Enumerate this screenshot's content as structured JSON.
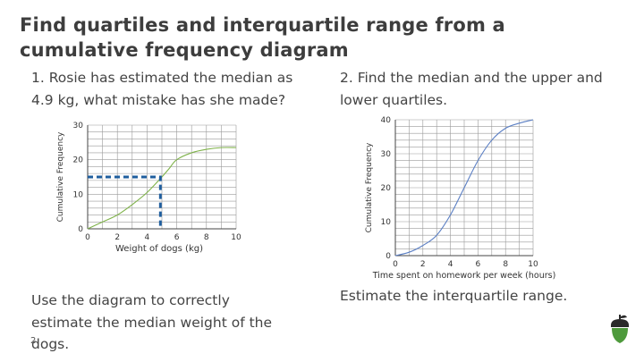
{
  "title": "Find quartiles and interquartile range from a cumulative frequency diagram",
  "question1": "1. Rosie has estimated the median as 4.9 kg, what mistake has she made?",
  "question2": "2. Find the median and the upper and lower quartiles.",
  "question3": "Use the diagram to correctly estimate the median weight of the dogs.",
  "question4": "Estimate the interquartile range.",
  "page_number": "2",
  "logo_icon": "acorn-icon",
  "colors": {
    "curve1": "#7fb24a",
    "curve2": "#5b7fc4",
    "dashed": "#1f5e9e",
    "grid": "#888888"
  },
  "chart_data": [
    {
      "type": "line",
      "xlabel": "Weight of dogs (kg)",
      "ylabel": "Cumulative Frequency",
      "xlim": [
        0,
        10
      ],
      "ylim": [
        0,
        30
      ],
      "xticks": [
        0,
        2,
        4,
        6,
        8,
        10
      ],
      "yticks": [
        0,
        10,
        20,
        30
      ],
      "grid": true,
      "series": [
        {
          "x": [
            0,
            1,
            2,
            3,
            4,
            5,
            5.5,
            6,
            7,
            8,
            9,
            10
          ],
          "y": [
            0,
            2,
            4,
            7,
            10.5,
            15,
            17.5,
            20,
            22,
            23,
            23.5,
            23.5
          ]
        }
      ],
      "annotation": {
        "type": "dashed-guide",
        "y": 15,
        "x": 4.9
      }
    },
    {
      "type": "line",
      "xlabel": "Time spent on homework per week (hours)",
      "ylabel": "Cumulative Frequency",
      "xlim": [
        0,
        10
      ],
      "ylim": [
        0,
        40
      ],
      "xticks": [
        0,
        2,
        4,
        6,
        8,
        10
      ],
      "yticks": [
        0,
        10,
        20,
        30,
        40
      ],
      "grid": true,
      "series": [
        {
          "x": [
            0,
            1,
            2,
            3,
            4,
            5,
            6,
            7,
            8,
            9,
            10
          ],
          "y": [
            0,
            1,
            3,
            6,
            12,
            20,
            28,
            34,
            37.5,
            39,
            40
          ]
        }
      ]
    }
  ]
}
